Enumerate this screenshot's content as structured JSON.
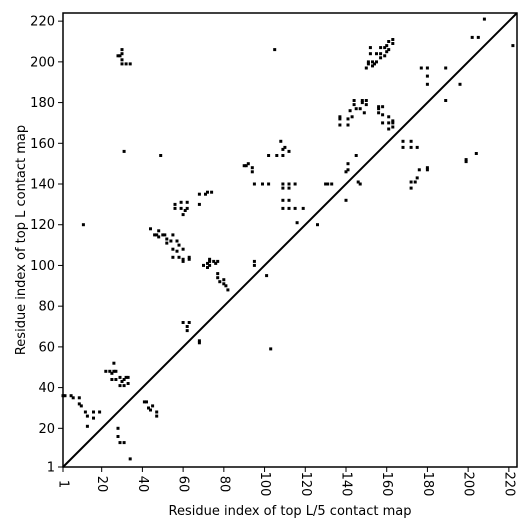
{
  "chart_data": {
    "type": "scatter",
    "title": "",
    "xlabel": "Residue index of top L/5 contact map",
    "ylabel": "Residue index of top L contact map",
    "xlim": [
      1,
      224
    ],
    "ylim": [
      1,
      224
    ],
    "xticks": [
      1,
      20,
      40,
      60,
      80,
      100,
      120,
      140,
      160,
      180,
      200,
      220
    ],
    "yticks": [
      1,
      20,
      40,
      60,
      80,
      100,
      120,
      140,
      160,
      180,
      200,
      220
    ],
    "grid": false,
    "marker_color": "#000000",
    "diagonal": true,
    "series": [
      {
        "points": [
          [
            1,
            36
          ],
          [
            2,
            36
          ],
          [
            5,
            36
          ],
          [
            6,
            35
          ],
          [
            9,
            35
          ],
          [
            9,
            32
          ],
          [
            10,
            31
          ],
          [
            12,
            28
          ],
          [
            13,
            26
          ],
          [
            13,
            21
          ],
          [
            16,
            28
          ],
          [
            16,
            25
          ],
          [
            19,
            28
          ],
          [
            22,
            48
          ],
          [
            24,
            48
          ],
          [
            25,
            44
          ],
          [
            25,
            47
          ],
          [
            26,
            48
          ],
          [
            26,
            52
          ],
          [
            27,
            44
          ],
          [
            27,
            48
          ],
          [
            28,
            20
          ],
          [
            28,
            16
          ],
          [
            29,
            13
          ],
          [
            29,
            41
          ],
          [
            29,
            45
          ],
          [
            30,
            43
          ],
          [
            31,
            41
          ],
          [
            31,
            44
          ],
          [
            31,
            13
          ],
          [
            32,
            45
          ],
          [
            33,
            42
          ],
          [
            33,
            45
          ],
          [
            34,
            5
          ],
          [
            11,
            120
          ],
          [
            28,
            203
          ],
          [
            29,
            203
          ],
          [
            30,
            206
          ],
          [
            30,
            204
          ],
          [
            30,
            201
          ],
          [
            30,
            199
          ],
          [
            32,
            199
          ],
          [
            34,
            199
          ],
          [
            31,
            156
          ],
          [
            41,
            33
          ],
          [
            42,
            33
          ],
          [
            43,
            30
          ],
          [
            44,
            29
          ],
          [
            45,
            31
          ],
          [
            47,
            28
          ],
          [
            47,
            26
          ],
          [
            44,
            118
          ],
          [
            46,
            115
          ],
          [
            47,
            115
          ],
          [
            48,
            117
          ],
          [
            48,
            114
          ],
          [
            49,
            154
          ],
          [
            50,
            115
          ],
          [
            51,
            115
          ],
          [
            52,
            113
          ],
          [
            52,
            111
          ],
          [
            54,
            112
          ],
          [
            55,
            115
          ],
          [
            55,
            108
          ],
          [
            55,
            104
          ],
          [
            56,
            130
          ],
          [
            56,
            128
          ],
          [
            57,
            112
          ],
          [
            57,
            107
          ],
          [
            58,
            104
          ],
          [
            58,
            110
          ],
          [
            59,
            131
          ],
          [
            59,
            128
          ],
          [
            60,
            102
          ],
          [
            60,
            103
          ],
          [
            60,
            108
          ],
          [
            60,
            125
          ],
          [
            61,
            127
          ],
          [
            62,
            131
          ],
          [
            62,
            128
          ],
          [
            63,
            104
          ],
          [
            63,
            103
          ],
          [
            60,
            72
          ],
          [
            62,
            68
          ],
          [
            62,
            70
          ],
          [
            63,
            72
          ],
          [
            68,
            63
          ],
          [
            68,
            62
          ],
          [
            68,
            130
          ],
          [
            68,
            135
          ],
          [
            70,
            100
          ],
          [
            71,
            135
          ],
          [
            72,
            136
          ],
          [
            72,
            99
          ],
          [
            72,
            101
          ],
          [
            73,
            100
          ],
          [
            73,
            102
          ],
          [
            73,
            103
          ],
          [
            74,
            136
          ],
          [
            75,
            102
          ],
          [
            76,
            101
          ],
          [
            77,
            102
          ],
          [
            77,
            96
          ],
          [
            77,
            94
          ],
          [
            78,
            92
          ],
          [
            80,
            93
          ],
          [
            80,
            91
          ],
          [
            81,
            90
          ],
          [
            82,
            88
          ],
          [
            90,
            149
          ],
          [
            91,
            149
          ],
          [
            92,
            150
          ],
          [
            94,
            148
          ],
          [
            94,
            146
          ],
          [
            95,
            140
          ],
          [
            95,
            102
          ],
          [
            95,
            100
          ],
          [
            99,
            140
          ],
          [
            101,
            95
          ],
          [
            102,
            140
          ],
          [
            102,
            154
          ],
          [
            103,
            59
          ],
          [
            105,
            206
          ],
          [
            106,
            154
          ],
          [
            108,
            161
          ],
          [
            109,
            157
          ],
          [
            109,
            154
          ],
          [
            109,
            140
          ],
          [
            109,
            138
          ],
          [
            109,
            132
          ],
          [
            109,
            128
          ],
          [
            110,
            158
          ],
          [
            112,
            156
          ],
          [
            112,
            132
          ],
          [
            112,
            128
          ],
          [
            112,
            140
          ],
          [
            112,
            138
          ],
          [
            115,
            140
          ],
          [
            115,
            128
          ],
          [
            116,
            121
          ],
          [
            119,
            128
          ],
          [
            126,
            120
          ],
          [
            130,
            140
          ],
          [
            131,
            140
          ],
          [
            133,
            140
          ],
          [
            137,
            173
          ],
          [
            137,
            172
          ],
          [
            137,
            169
          ],
          [
            140,
            132
          ],
          [
            140,
            146
          ],
          [
            141,
            150
          ],
          [
            141,
            147
          ],
          [
            141,
            169
          ],
          [
            141,
            172
          ],
          [
            142,
            176
          ],
          [
            143,
            173
          ],
          [
            144,
            181
          ],
          [
            144,
            179
          ],
          [
            145,
            177
          ],
          [
            145,
            154
          ],
          [
            146,
            141
          ],
          [
            147,
            140
          ],
          [
            147,
            177
          ],
          [
            148,
            180
          ],
          [
            148,
            181
          ],
          [
            149,
            175
          ],
          [
            150,
            179
          ],
          [
            150,
            181
          ],
          [
            150,
            197
          ],
          [
            151,
            200
          ],
          [
            151,
            199
          ],
          [
            152,
            204
          ],
          [
            152,
            207
          ],
          [
            153,
            200
          ],
          [
            153,
            198
          ],
          [
            154,
            199
          ],
          [
            155,
            204
          ],
          [
            155,
            200
          ],
          [
            156,
            178
          ],
          [
            156,
            177
          ],
          [
            156,
            175
          ],
          [
            157,
            202
          ],
          [
            157,
            204
          ],
          [
            157,
            207
          ],
          [
            158,
            178
          ],
          [
            158,
            174
          ],
          [
            158,
            170
          ],
          [
            159,
            203
          ],
          [
            159,
            207
          ],
          [
            160,
            208
          ],
          [
            160,
            205
          ],
          [
            161,
            210
          ],
          [
            161,
            206
          ],
          [
            161,
            173
          ],
          [
            161,
            170
          ],
          [
            161,
            167
          ],
          [
            163,
            171
          ],
          [
            163,
            170
          ],
          [
            163,
            168
          ],
          [
            163,
            209
          ],
          [
            163,
            211
          ],
          [
            168,
            161
          ],
          [
            168,
            158
          ],
          [
            172,
            161
          ],
          [
            172,
            158
          ],
          [
            172,
            141
          ],
          [
            172,
            138
          ],
          [
            174,
            141
          ],
          [
            175,
            143
          ],
          [
            175,
            158
          ],
          [
            176,
            147
          ],
          [
            177,
            197
          ],
          [
            180,
            197
          ],
          [
            180,
            193
          ],
          [
            180,
            189
          ],
          [
            180,
            148
          ],
          [
            180,
            147
          ],
          [
            189,
            197
          ],
          [
            189,
            181
          ],
          [
            196,
            189
          ],
          [
            199,
            152
          ],
          [
            199,
            151
          ],
          [
            202,
            212
          ],
          [
            204,
            155
          ],
          [
            205,
            212
          ],
          [
            208,
            221
          ],
          [
            222,
            208
          ]
        ]
      }
    ]
  }
}
